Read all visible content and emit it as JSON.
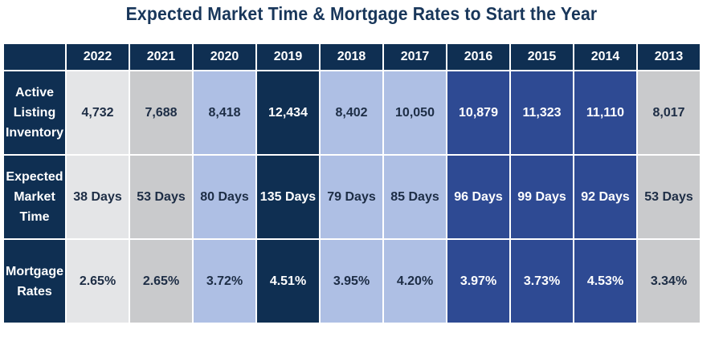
{
  "title": "Expected Market Time & Mortgage Rates to Start the Year",
  "chart_data": {
    "type": "table",
    "title": "Expected Market Time & Mortgage Rates to Start the Year",
    "columns": [
      "2022",
      "2021",
      "2020",
      "2019",
      "2018",
      "2017",
      "2016",
      "2015",
      "2014",
      "2013"
    ],
    "column_colors": [
      "#e4e5e7",
      "#c9cacc",
      "#aebfe4",
      "#0f2f52",
      "#aebfe4",
      "#aebfe4",
      "#2e4a93",
      "#2e4a93",
      "#2e4a93",
      "#c9cacc"
    ],
    "rows": [
      {
        "label_lines": [
          "Active",
          "Listing",
          "Inventory"
        ],
        "cells": [
          "4,732",
          "7,688",
          "8,418",
          "12,434",
          "8,402",
          "10,050",
          "10,879",
          "11,323",
          "11,110",
          "8,017"
        ],
        "values": [
          4732,
          7688,
          8418,
          12434,
          8402,
          10050,
          10879,
          11323,
          11110,
          8017
        ]
      },
      {
        "label_lines": [
          "Expected",
          "Market",
          "Time"
        ],
        "cells": [
          "38 Days",
          "53 Days",
          "80 Days",
          "135 Days",
          "79 Days",
          "85 Days",
          "96 Days",
          "99 Days",
          "92 Days",
          "53 Days"
        ],
        "values": [
          38,
          53,
          80,
          135,
          79,
          85,
          96,
          99,
          92,
          53
        ]
      },
      {
        "label_lines": [
          "Mortgage",
          "Rates"
        ],
        "cells": [
          "2.65%",
          "2.65%",
          "3.72%",
          "4.51%",
          "3.95%",
          "4.20%",
          "3.97%",
          "3.73%",
          "4.53%",
          "3.34%"
        ],
        "values": [
          2.65,
          2.65,
          3.72,
          4.51,
          3.95,
          4.2,
          3.97,
          3.73,
          4.53,
          3.34
        ]
      }
    ]
  }
}
